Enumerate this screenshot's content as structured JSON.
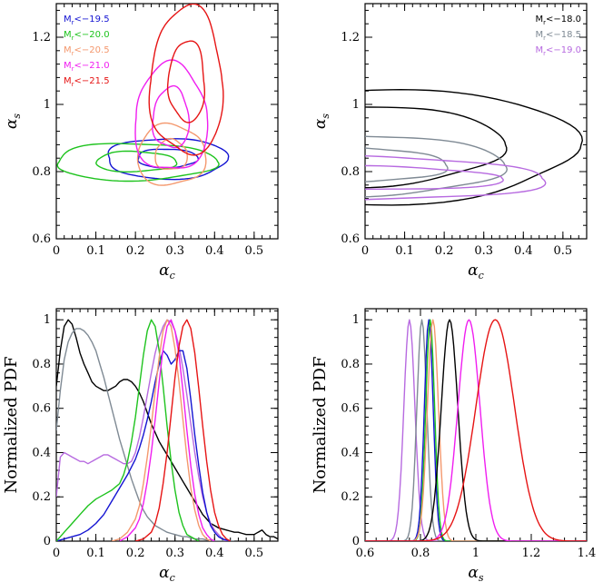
{
  "chart_data": [
    {
      "type": "contour",
      "panel": "top-left",
      "xlabel": "αc",
      "ylabel": "αs",
      "xlim": [
        0,
        0.56
      ],
      "ylim": [
        0.6,
        1.3
      ],
      "xticks": [
        0,
        0.1,
        0.2,
        0.3,
        0.4,
        0.5
      ],
      "xtick_labels": [
        "0",
        "0.1",
        "0.2",
        "0.3",
        "0.4",
        "0.5"
      ],
      "yticks": [
        0.6,
        0.8,
        1.0,
        1.2
      ],
      "ytick_labels": [
        "0.6",
        "0.8",
        "1",
        "1.2"
      ],
      "legend_position": "top-left",
      "series": [
        {
          "name": "Mr<−19.5",
          "color": "#1414d2",
          "center": [
            0.28,
            0.84
          ],
          "contours": [
            {
              "rx": 0.15,
              "ry": 0.06
            },
            {
              "rx": 0.075,
              "ry": 0.028
            }
          ]
        },
        {
          "name": "Mr<−20.0",
          "color": "#1ec31e",
          "center": [
            0.2,
            0.83
          ],
          "contours": [
            {
              "rx": 0.2,
              "ry": 0.055
            },
            {
              "rx": 0.1,
              "ry": 0.03
            }
          ]
        },
        {
          "name": "Mr<−20.5",
          "color": "#f4986e",
          "center": [
            0.29,
            0.85
          ],
          "contours": [
            {
              "rx": 0.085,
              "ry": 0.09
            },
            {
              "rx": 0.04,
              "ry": 0.045
            }
          ]
        },
        {
          "name": "Mr<−21.0",
          "color": "#f01ef0",
          "center": [
            0.29,
            0.96
          ],
          "contours": [
            {
              "rx": 0.09,
              "ry": 0.16
            },
            {
              "rx": 0.045,
              "ry": 0.09
            }
          ]
        },
        {
          "name": "Mr<−21.5",
          "color": "#e61414",
          "center": [
            0.33,
            1.07
          ],
          "contours": [
            {
              "rx": 0.09,
              "ry": 0.22
            },
            {
              "rx": 0.045,
              "ry": 0.12
            }
          ]
        }
      ]
    },
    {
      "type": "contour",
      "panel": "top-right",
      "xlabel": "αc",
      "ylabel": "αs",
      "xlim": [
        0,
        0.56
      ],
      "ylim": [
        0.6,
        1.3
      ],
      "xticks": [
        0,
        0.1,
        0.2,
        0.3,
        0.4,
        0.5
      ],
      "xtick_labels": [
        "0",
        "0.1",
        "0.2",
        "0.3",
        "0.4",
        "0.5"
      ],
      "yticks": [
        0.6,
        0.8,
        1.0,
        1.2
      ],
      "ytick_labels": [
        "0.6",
        "0.8",
        "1",
        "1.2"
      ],
      "legend_position": "top-right",
      "series": [
        {
          "name": "Mr<−18.0",
          "color": "#000000",
          "center": [
            0.0,
            0.88
          ],
          "contours": [
            {
              "rx": 0.53,
              "ry": 0.17
            },
            {
              "rx": 0.34,
              "ry": 0.12
            }
          ]
        },
        {
          "name": "Mr<−18.5",
          "color": "#7f8a94",
          "center": [
            0.0,
            0.82
          ],
          "contours": [
            {
              "rx": 0.34,
              "ry": 0.09
            },
            {
              "rx": 0.2,
              "ry": 0.05
            }
          ]
        },
        {
          "name": "Mr<−19.0",
          "color": "#b76ae0",
          "center": [
            0.0,
            0.78
          ],
          "contours": [
            {
              "rx": 0.44,
              "ry": 0.065
            },
            {
              "rx": 0.34,
              "ry": 0.035
            }
          ]
        }
      ]
    },
    {
      "type": "line",
      "panel": "bottom-left",
      "xlabel": "αc",
      "ylabel": "Normalized PDF",
      "xlim": [
        0,
        0.56
      ],
      "ylim": [
        0,
        1.05
      ],
      "xticks": [
        0,
        0.1,
        0.2,
        0.3,
        0.4,
        0.5
      ],
      "xtick_labels": [
        "0",
        "0.1",
        "0.2",
        "0.3",
        "0.4",
        "0.5"
      ],
      "yticks": [
        0,
        0.2,
        0.4,
        0.6,
        0.8,
        1.0
      ],
      "ytick_labels": [
        "0",
        "0.2",
        "0.4",
        "0.6",
        "0.8",
        "1"
      ],
      "series": [
        {
          "name": "Mr<−18.0",
          "color": "#000000",
          "x": [
            0.0,
            0.01,
            0.02,
            0.03,
            0.04,
            0.05,
            0.06,
            0.07,
            0.08,
            0.09,
            0.1,
            0.11,
            0.12,
            0.13,
            0.14,
            0.15,
            0.16,
            0.17,
            0.18,
            0.19,
            0.2,
            0.21,
            0.22,
            0.23,
            0.24,
            0.25,
            0.26,
            0.27,
            0.28,
            0.29,
            0.3,
            0.31,
            0.32,
            0.33,
            0.34,
            0.35,
            0.36,
            0.37,
            0.38,
            0.39,
            0.4,
            0.41,
            0.42,
            0.43,
            0.44,
            0.45,
            0.46,
            0.47,
            0.48,
            0.49,
            0.5,
            0.51,
            0.52,
            0.53,
            0.54,
            0.55,
            0.56
          ],
          "y": [
            0.7,
            0.86,
            0.97,
            1.0,
            0.98,
            0.92,
            0.85,
            0.8,
            0.76,
            0.72,
            0.7,
            0.69,
            0.68,
            0.68,
            0.69,
            0.7,
            0.72,
            0.73,
            0.73,
            0.72,
            0.7,
            0.67,
            0.63,
            0.58,
            0.53,
            0.49,
            0.45,
            0.42,
            0.39,
            0.36,
            0.33,
            0.3,
            0.27,
            0.24,
            0.21,
            0.18,
            0.15,
            0.12,
            0.1,
            0.08,
            0.07,
            0.06,
            0.055,
            0.05,
            0.045,
            0.04,
            0.04,
            0.035,
            0.03,
            0.03,
            0.03,
            0.04,
            0.05,
            0.03,
            0.02,
            0.02,
            0.01
          ]
        },
        {
          "name": "Mr<−18.5",
          "color": "#7f8a94",
          "x": [
            0.0,
            0.01,
            0.02,
            0.03,
            0.04,
            0.05,
            0.06,
            0.07,
            0.08,
            0.09,
            0.1,
            0.11,
            0.12,
            0.13,
            0.14,
            0.15,
            0.16,
            0.17,
            0.18,
            0.19,
            0.2,
            0.21,
            0.22,
            0.23,
            0.24,
            0.25,
            0.26,
            0.27,
            0.28,
            0.29,
            0.3,
            0.31,
            0.32,
            0.33,
            0.34,
            0.35,
            0.36,
            0.37,
            0.38,
            0.39,
            0.4,
            0.41,
            0.42,
            0.43,
            0.44,
            0.45
          ],
          "y": [
            0.5,
            0.68,
            0.82,
            0.9,
            0.94,
            0.96,
            0.96,
            0.95,
            0.93,
            0.9,
            0.86,
            0.8,
            0.74,
            0.67,
            0.6,
            0.53,
            0.46,
            0.4,
            0.34,
            0.28,
            0.23,
            0.18,
            0.14,
            0.11,
            0.09,
            0.07,
            0.06,
            0.05,
            0.04,
            0.035,
            0.03,
            0.025,
            0.02,
            0.02,
            0.015,
            0.01,
            0.01,
            0.01,
            0.005,
            0.005,
            0.0,
            0.0,
            0.0,
            0.0,
            0.0,
            0.0
          ]
        },
        {
          "name": "Mr<−19.0",
          "color": "#b76ae0",
          "x": [
            0.0,
            0.01,
            0.02,
            0.03,
            0.04,
            0.05,
            0.06,
            0.07,
            0.08,
            0.09,
            0.1,
            0.11,
            0.12,
            0.13,
            0.14,
            0.15,
            0.16,
            0.17,
            0.18,
            0.19,
            0.2,
            0.21,
            0.22,
            0.23,
            0.24,
            0.25,
            0.26,
            0.27,
            0.28,
            0.29,
            0.3,
            0.31,
            0.32,
            0.33,
            0.34,
            0.35,
            0.36,
            0.37,
            0.38,
            0.39,
            0.4,
            0.41,
            0.42,
            0.43
          ],
          "y": [
            0.2,
            0.38,
            0.4,
            0.39,
            0.38,
            0.37,
            0.36,
            0.36,
            0.35,
            0.36,
            0.37,
            0.38,
            0.39,
            0.39,
            0.38,
            0.37,
            0.36,
            0.35,
            0.35,
            0.36,
            0.4,
            0.47,
            0.56,
            0.66,
            0.76,
            0.85,
            0.92,
            0.97,
            1.0,
            0.99,
            0.95,
            0.88,
            0.78,
            0.66,
            0.53,
            0.4,
            0.29,
            0.2,
            0.13,
            0.08,
            0.05,
            0.03,
            0.01,
            0.0
          ]
        },
        {
          "name": "Mr<−19.5",
          "color": "#1414d2",
          "x": [
            0.0,
            0.02,
            0.04,
            0.06,
            0.08,
            0.1,
            0.12,
            0.14,
            0.16,
            0.18,
            0.2,
            0.21,
            0.22,
            0.23,
            0.24,
            0.25,
            0.26,
            0.27,
            0.28,
            0.29,
            0.3,
            0.31,
            0.32,
            0.33,
            0.34,
            0.35,
            0.36,
            0.37,
            0.38,
            0.39,
            0.4,
            0.41,
            0.42,
            0.43,
            0.44
          ],
          "y": [
            0.0,
            0.01,
            0.02,
            0.03,
            0.05,
            0.08,
            0.12,
            0.18,
            0.24,
            0.3,
            0.37,
            0.42,
            0.48,
            0.55,
            0.63,
            0.72,
            0.8,
            0.86,
            0.84,
            0.8,
            0.82,
            0.86,
            0.86,
            0.78,
            0.64,
            0.48,
            0.34,
            0.22,
            0.13,
            0.07,
            0.04,
            0.02,
            0.01,
            0.005,
            0.0
          ]
        },
        {
          "name": "Mr<−20.0",
          "color": "#1ec31e",
          "x": [
            0.0,
            0.02,
            0.04,
            0.06,
            0.08,
            0.1,
            0.12,
            0.14,
            0.16,
            0.17,
            0.18,
            0.19,
            0.2,
            0.21,
            0.22,
            0.23,
            0.24,
            0.25,
            0.26,
            0.27,
            0.28,
            0.29,
            0.3,
            0.31,
            0.32,
            0.33,
            0.34,
            0.35,
            0.36
          ],
          "y": [
            0.0,
            0.04,
            0.08,
            0.12,
            0.16,
            0.19,
            0.21,
            0.23,
            0.26,
            0.3,
            0.36,
            0.45,
            0.56,
            0.7,
            0.84,
            0.95,
            1.0,
            0.97,
            0.86,
            0.7,
            0.52,
            0.36,
            0.23,
            0.13,
            0.07,
            0.03,
            0.02,
            0.01,
            0.0
          ]
        },
        {
          "name": "Mr<−20.5",
          "color": "#f4986e",
          "x": [
            0.14,
            0.16,
            0.18,
            0.2,
            0.21,
            0.22,
            0.23,
            0.24,
            0.25,
            0.26,
            0.27,
            0.28,
            0.29,
            0.3,
            0.31,
            0.32,
            0.33,
            0.34,
            0.35,
            0.36,
            0.37,
            0.38,
            0.39
          ],
          "y": [
            0.0,
            0.01,
            0.04,
            0.1,
            0.16,
            0.26,
            0.38,
            0.52,
            0.68,
            0.83,
            0.95,
            1.0,
            0.97,
            0.87,
            0.72,
            0.55,
            0.38,
            0.24,
            0.14,
            0.07,
            0.03,
            0.01,
            0.0
          ]
        },
        {
          "name": "Mr<−21.0",
          "color": "#f01ef0",
          "x": [
            0.16,
            0.18,
            0.2,
            0.21,
            0.22,
            0.23,
            0.24,
            0.25,
            0.26,
            0.27,
            0.28,
            0.29,
            0.3,
            0.31,
            0.32,
            0.33,
            0.34,
            0.35,
            0.36,
            0.37,
            0.38,
            0.39,
            0.4
          ],
          "y": [
            0.0,
            0.02,
            0.06,
            0.1,
            0.17,
            0.27,
            0.4,
            0.55,
            0.72,
            0.87,
            0.97,
            1.0,
            0.95,
            0.84,
            0.68,
            0.5,
            0.34,
            0.21,
            0.12,
            0.06,
            0.03,
            0.01,
            0.0
          ]
        },
        {
          "name": "Mr<−21.5",
          "color": "#e61414",
          "x": [
            0.2,
            0.22,
            0.24,
            0.25,
            0.26,
            0.27,
            0.28,
            0.29,
            0.3,
            0.31,
            0.32,
            0.33,
            0.34,
            0.35,
            0.36,
            0.37,
            0.38,
            0.39,
            0.4,
            0.41,
            0.42,
            0.43,
            0.44
          ],
          "y": [
            0.0,
            0.01,
            0.04,
            0.08,
            0.15,
            0.26,
            0.4,
            0.57,
            0.74,
            0.88,
            0.97,
            1.0,
            0.96,
            0.85,
            0.69,
            0.52,
            0.36,
            0.23,
            0.13,
            0.07,
            0.03,
            0.01,
            0.0
          ]
        }
      ]
    },
    {
      "type": "line",
      "panel": "bottom-right",
      "xlabel": "αs",
      "ylabel": "Normalized PDF",
      "xlim": [
        0.6,
        1.4
      ],
      "ylim": [
        0,
        1.05
      ],
      "xticks": [
        0.6,
        0.8,
        1.0,
        1.2,
        1.4
      ],
      "xtick_labels": [
        "0.6",
        "0.8",
        "1",
        "1.2",
        "1.4"
      ],
      "yticks": [
        0,
        0.2,
        0.4,
        0.6,
        0.8,
        1.0
      ],
      "ytick_labels": [
        "0",
        "0.2",
        "0.4",
        "0.6",
        "0.8",
        "1"
      ],
      "series": [
        {
          "name": "Mr<−19.0",
          "color": "#b76ae0",
          "peak": 0.76,
          "sigma": 0.02
        },
        {
          "name": "Mr<−18.5",
          "color": "#7f8a94",
          "peak": 0.805,
          "sigma": 0.018
        },
        {
          "name": "Mr<−19.5",
          "color": "#1414d2",
          "peak": 0.83,
          "sigma": 0.016
        },
        {
          "name": "Mr<−20.0",
          "color": "#1ec31e",
          "peak": 0.835,
          "sigma": 0.016
        },
        {
          "name": "Mr<−20.5",
          "color": "#f4986e",
          "peak": 0.845,
          "sigma": 0.02
        },
        {
          "name": "Mr<−18.0",
          "color": "#000000",
          "peak": 0.905,
          "sigma": 0.03
        },
        {
          "name": "Mr<−21.0",
          "color": "#f01ef0",
          "peak": 0.975,
          "sigma": 0.04
        },
        {
          "name": "Mr<−21.5",
          "color": "#e61414",
          "peak": 1.07,
          "sigma": 0.07
        }
      ]
    }
  ]
}
